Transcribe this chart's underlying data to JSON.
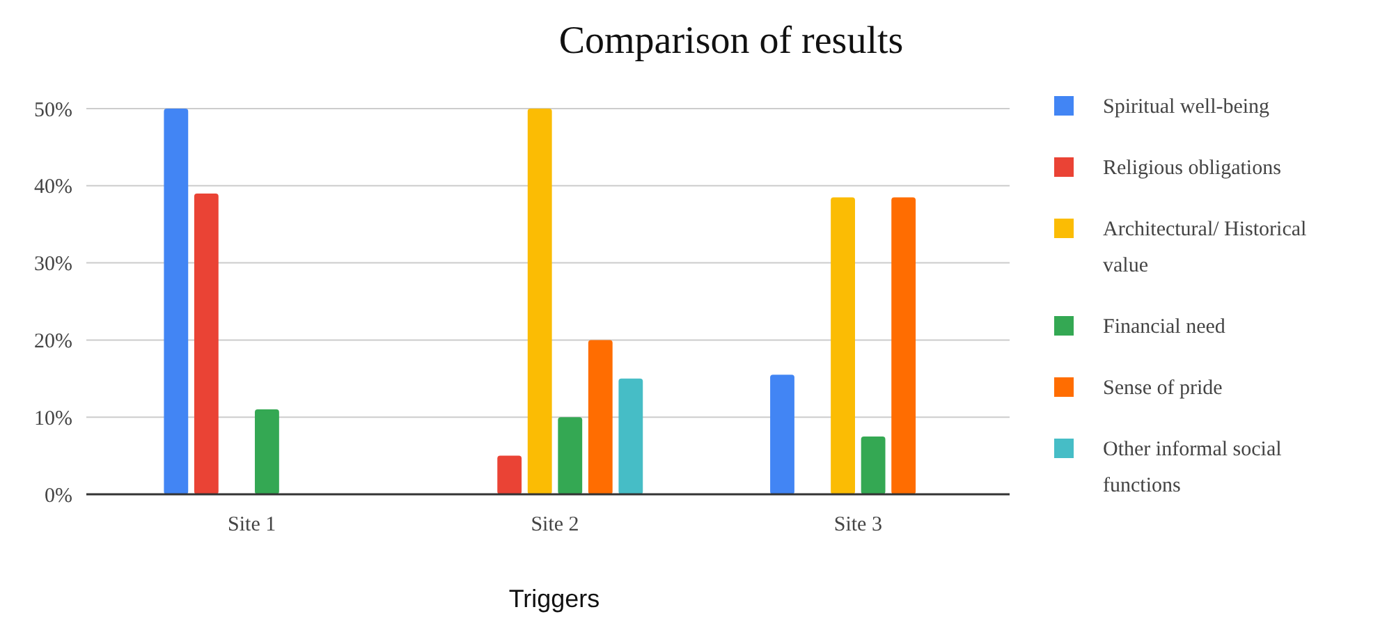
{
  "chart_data": {
    "type": "bar",
    "title": "Comparison of results",
    "xlabel": "Triggers",
    "categories": [
      "Site 1",
      "Site 2",
      "Site 3"
    ],
    "series": [
      {
        "name": "Spiritual well-being",
        "color": "#4285f4",
        "values": [
          50,
          null,
          15.5
        ]
      },
      {
        "name": "Religious obligations",
        "color": "#ea4335",
        "values": [
          39,
          5,
          null
        ]
      },
      {
        "name": "Architectural/ Historical value",
        "color": "#fbbc04",
        "values": [
          null,
          50,
          38.5
        ]
      },
      {
        "name": "Financial need",
        "color": "#34a853",
        "values": [
          11,
          10,
          7.5
        ]
      },
      {
        "name": "Sense of pride",
        "color": "#ff6d01",
        "values": [
          null,
          20,
          38.5
        ]
      },
      {
        "name": "Other informal social functions",
        "color": "#46bdc6",
        "values": [
          null,
          15,
          null
        ]
      }
    ],
    "ylim": [
      0,
      50
    ],
    "yticks": [
      {
        "value": 0,
        "label": "0%"
      },
      {
        "value": 10,
        "label": "10%"
      },
      {
        "value": 20,
        "label": "20%"
      },
      {
        "value": 30,
        "label": "30%"
      },
      {
        "value": 40,
        "label": "40%"
      },
      {
        "value": 50,
        "label": "50%"
      }
    ],
    "grid": "y",
    "legend": "right"
  }
}
